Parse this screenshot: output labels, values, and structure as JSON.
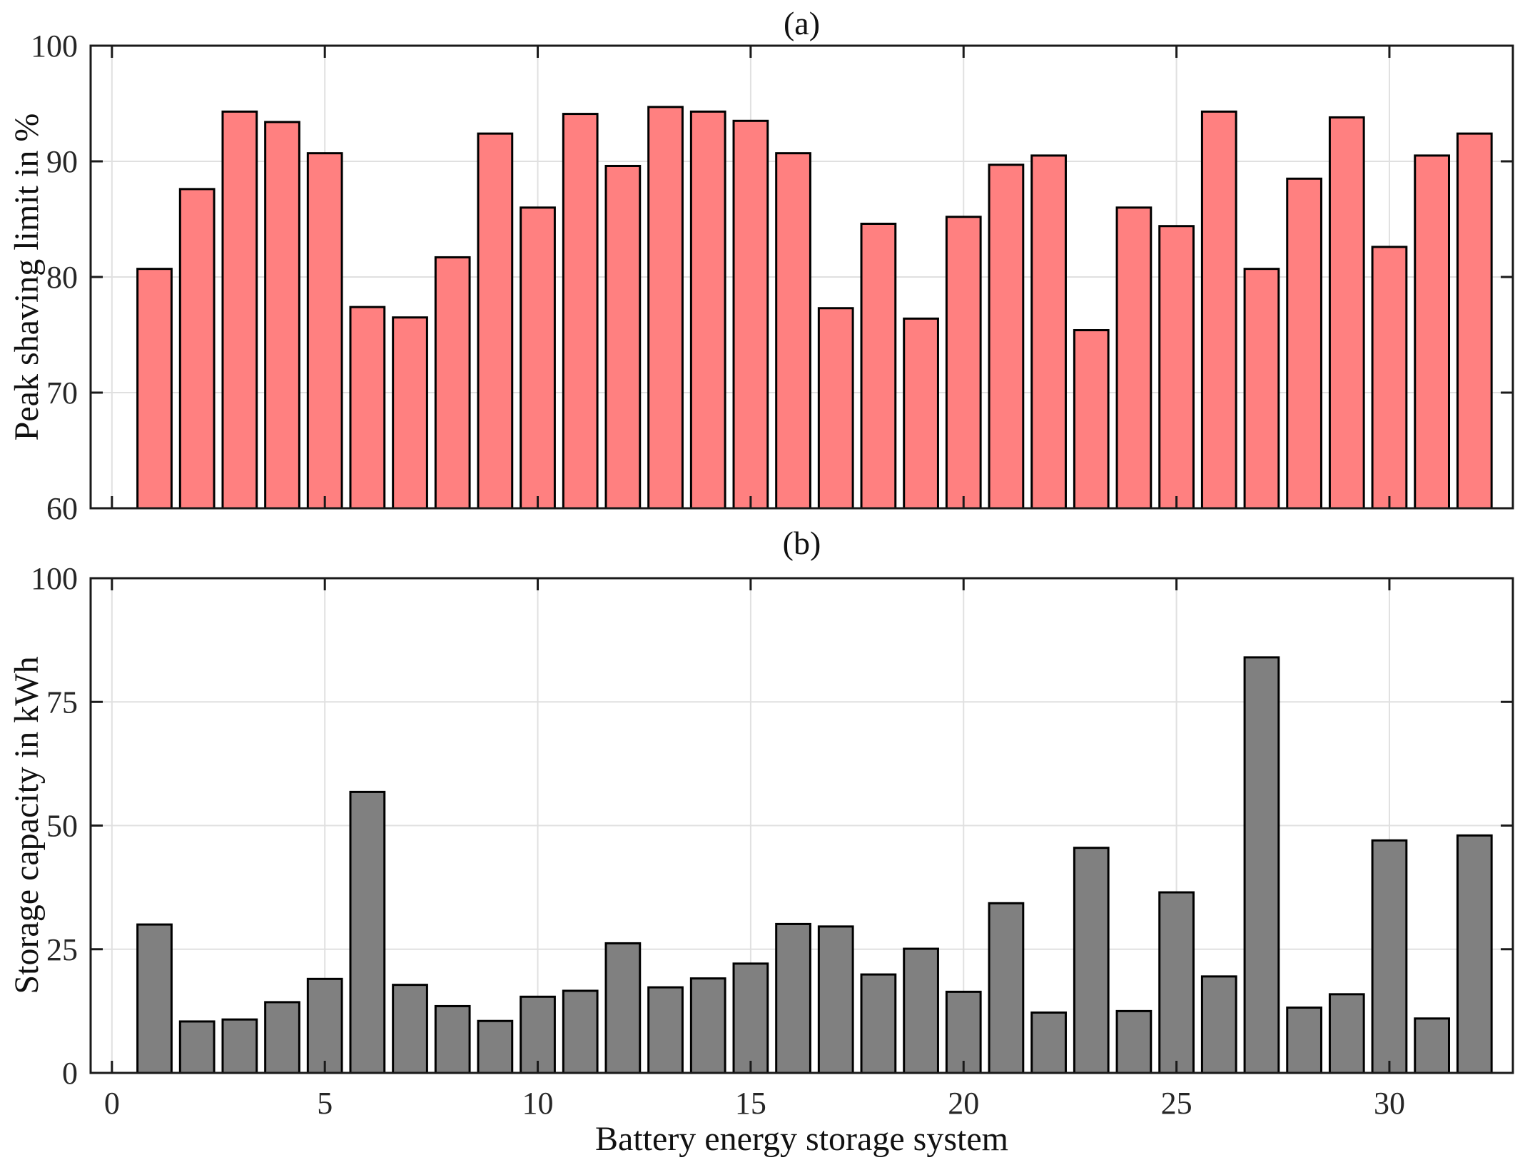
{
  "figure": {
    "background": "#ffffff",
    "frame_color": "#1a1a1a",
    "grid_color": "#e0e0e0",
    "text_color": "#262626"
  },
  "chart_data": [
    {
      "type": "bar",
      "title": "(a)",
      "ylabel": "Peak shaving limit in %",
      "xlabel": "",
      "bar_color": "#ff8080",
      "bar_edge_color": "#000000",
      "ylim": [
        60,
        100
      ],
      "yticks": [
        60,
        70,
        80,
        90,
        100
      ],
      "xlim": [
        -0.5,
        32.9
      ],
      "xticks": [
        0,
        5,
        10,
        15,
        20,
        25,
        30
      ],
      "grid": true,
      "x": [
        1,
        2,
        3,
        4,
        5,
        6,
        7,
        8,
        9,
        10,
        11,
        12,
        13,
        14,
        15,
        16,
        17,
        18,
        19,
        20,
        21,
        22,
        23,
        24,
        25,
        26,
        27,
        28,
        29,
        30,
        31,
        32
      ],
      "values": [
        80.7,
        87.6,
        94.3,
        93.4,
        90.7,
        77.4,
        76.5,
        81.7,
        92.4,
        86.0,
        94.1,
        89.6,
        94.7,
        94.3,
        93.5,
        90.7,
        77.3,
        84.6,
        76.4,
        85.2,
        89.7,
        90.5,
        75.4,
        86.0,
        84.4,
        94.3,
        80.7,
        88.5,
        93.8,
        82.6,
        90.5,
        92.4
      ]
    },
    {
      "type": "bar",
      "title": "(b)",
      "ylabel": "Storage capacity in kWh",
      "xlabel": "Battery energy storage system",
      "bar_color": "#808080",
      "bar_edge_color": "#000000",
      "ylim": [
        0,
        100
      ],
      "yticks": [
        0,
        25,
        50,
        75,
        100
      ],
      "xlim": [
        -0.5,
        32.9
      ],
      "xticks": [
        0,
        5,
        10,
        15,
        20,
        25,
        30
      ],
      "grid": true,
      "x": [
        1,
        2,
        3,
        4,
        5,
        6,
        7,
        8,
        9,
        10,
        11,
        12,
        13,
        14,
        15,
        16,
        17,
        18,
        19,
        20,
        21,
        22,
        23,
        24,
        25,
        26,
        27,
        28,
        29,
        30,
        31,
        32
      ],
      "values": [
        30.0,
        10.4,
        10.8,
        14.3,
        19.0,
        56.8,
        17.8,
        13.5,
        10.5,
        15.4,
        16.6,
        26.2,
        17.3,
        19.1,
        22.1,
        30.1,
        29.6,
        19.9,
        25.1,
        16.4,
        34.3,
        12.2,
        45.5,
        12.5,
        36.5,
        19.5,
        84.0,
        13.2,
        15.9,
        47.0,
        11.0,
        48.0
      ]
    }
  ]
}
